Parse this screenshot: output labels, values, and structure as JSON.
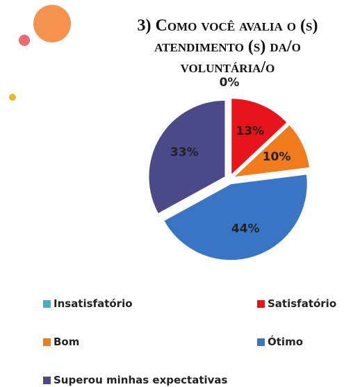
{
  "chart_data": {
    "type": "pie",
    "title": "3) Como você avalia o (s) atendimento (s) da/o voluntária/o",
    "categories": [
      "Insatisfatório",
      "Satisfatório",
      "Bom",
      "Ótimo",
      "Superou minhas expectativas"
    ],
    "values": [
      0,
      13,
      10,
      44,
      33
    ],
    "value_labels": [
      "0%",
      "13%",
      "10%",
      "44%",
      "33%"
    ],
    "colors": [
      "#4bacc6",
      "#e8141c",
      "#f07c1c",
      "#3a74c4",
      "#4a4a8a"
    ]
  }
}
